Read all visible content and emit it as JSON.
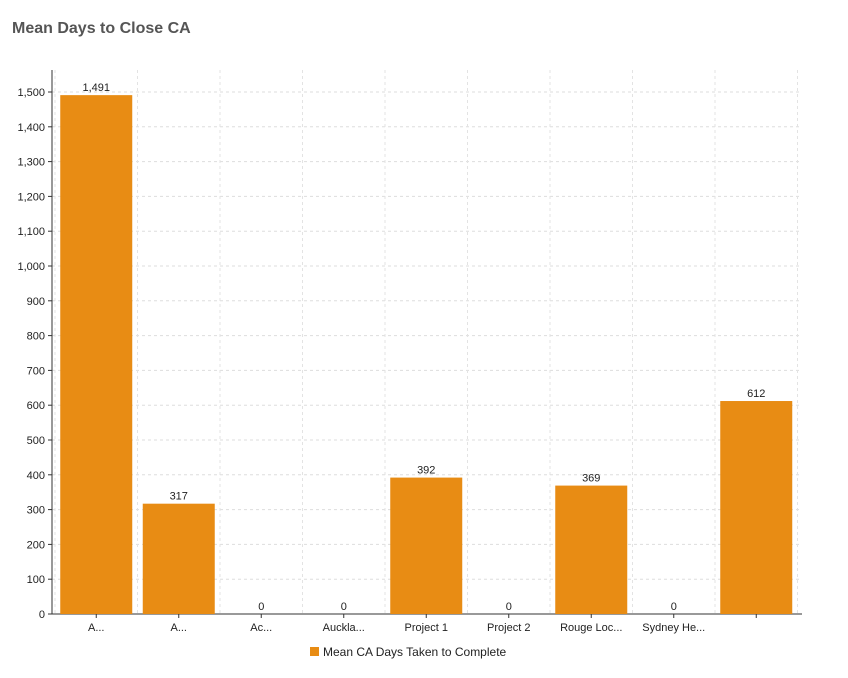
{
  "chart_data": {
    "type": "bar",
    "title": "Mean Days to Close CA",
    "xlabel": "",
    "ylabel": "",
    "categories": [
      "A...",
      "A...",
      "Ac...",
      "Auckla...",
      "Project 1",
      "Project 2",
      "Rouge Loc...",
      "Sydney He...",
      ""
    ],
    "series": [
      {
        "name": "Mean CA Days Taken to Complete",
        "values": [
          1491,
          317,
          0,
          0,
          392,
          0,
          369,
          0,
          612
        ],
        "labels": [
          "1,491",
          "317",
          "0",
          "0",
          "392",
          "0",
          "369",
          "0",
          "612"
        ],
        "color": "#e88c14"
      }
    ],
    "ylim": [
      0,
      1500
    ],
    "yticks": [
      0,
      100,
      200,
      300,
      400,
      500,
      600,
      700,
      800,
      900,
      1000,
      1100,
      1200,
      1300,
      1400,
      1500
    ],
    "ytick_labels": [
      "0",
      "100",
      "200",
      "300",
      "400",
      "500",
      "600",
      "700",
      "800",
      "900",
      "1,000",
      "1,100",
      "1,200",
      "1,300",
      "1,400",
      "1,500"
    ],
    "grid": true,
    "legend_position": "bottom"
  }
}
